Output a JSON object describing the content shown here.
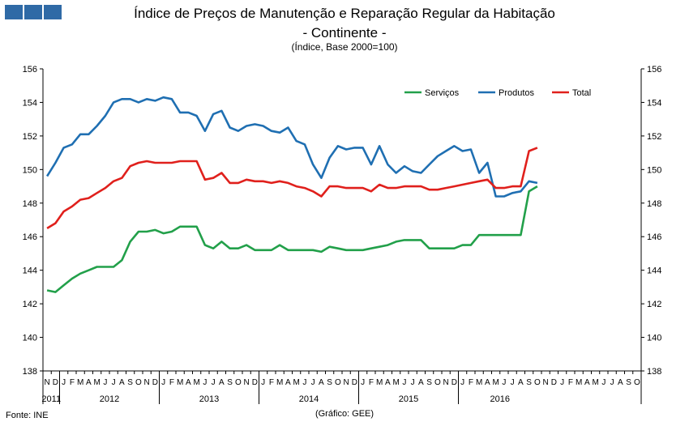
{
  "header": {
    "title": "Índice de Preços de Manutenção e Reparação Regular da Habitação",
    "subtitle": "- Continente -",
    "unit": "(Índice, Base 2000=100)"
  },
  "footer": {
    "source": "Fonte: INE",
    "credit": "(Gráfico: GEE)"
  },
  "logo": {
    "color": "#2f6aa6"
  },
  "chart_data": {
    "type": "line",
    "ylim": [
      138,
      156
    ],
    "yticks": [
      "138",
      "140",
      "142",
      "144",
      "146",
      "148",
      "150",
      "152",
      "154",
      "156"
    ],
    "grid": false,
    "legend_position": "top-right",
    "month_labels": [
      "N",
      "D",
      "J",
      "F",
      "M",
      "A",
      "M",
      "J",
      "J",
      "A",
      "S",
      "O",
      "N",
      "D",
      "J",
      "F",
      "M",
      "A",
      "M",
      "J",
      "J",
      "A",
      "S",
      "O",
      "N",
      "D",
      "J",
      "F",
      "M",
      "A",
      "M",
      "J",
      "J",
      "A",
      "S",
      "O",
      "N",
      "D",
      "J",
      "F",
      "M",
      "A",
      "M",
      "J",
      "J",
      "A",
      "S",
      "O",
      "N",
      "D",
      "J",
      "F",
      "M",
      "A",
      "M",
      "J",
      "J",
      "A",
      "S",
      "O",
      "N",
      "D",
      "J",
      "F",
      "M",
      "A",
      "M",
      "J",
      "J",
      "A",
      "S",
      "O"
    ],
    "year_groups": [
      {
        "label": "2011",
        "months": 2
      },
      {
        "label": "2012",
        "months": 12
      },
      {
        "label": "2013",
        "months": 12
      },
      {
        "label": "2014",
        "months": 12
      },
      {
        "label": "2015",
        "months": 12
      },
      {
        "label": "2016",
        "months": 10
      }
    ],
    "series": [
      {
        "name": "Serviços",
        "color": "#22a04a",
        "values": [
          142.8,
          142.7,
          143.1,
          143.5,
          143.8,
          144.0,
          144.2,
          144.2,
          144.2,
          144.6,
          145.7,
          146.3,
          146.3,
          146.4,
          146.2,
          146.3,
          146.6,
          146.6,
          146.6,
          145.5,
          145.3,
          145.7,
          145.3,
          145.3,
          145.5,
          145.2,
          145.2,
          145.2,
          145.5,
          145.2,
          145.2,
          145.2,
          145.2,
          145.1,
          145.4,
          145.3,
          145.2,
          145.2,
          145.2,
          145.3,
          145.4,
          145.5,
          145.7,
          145.8,
          145.8,
          145.8,
          145.3,
          145.3,
          145.3,
          145.3,
          145.5,
          145.5,
          146.1,
          146.1,
          146.1,
          146.1,
          146.1,
          146.1,
          148.7,
          149.0
        ]
      },
      {
        "name": "Produtos",
        "color": "#1f6fb2",
        "values": [
          149.6,
          150.4,
          151.3,
          151.5,
          152.1,
          152.1,
          152.6,
          153.2,
          154.0,
          154.2,
          154.2,
          154.0,
          154.2,
          154.1,
          154.3,
          154.2,
          153.4,
          153.4,
          153.2,
          152.3,
          153.3,
          153.5,
          152.5,
          152.3,
          152.6,
          152.7,
          152.6,
          152.3,
          152.2,
          152.5,
          151.7,
          151.5,
          150.3,
          149.5,
          150.7,
          151.4,
          151.2,
          151.3,
          151.3,
          150.3,
          151.4,
          150.3,
          149.8,
          150.2,
          149.9,
          149.8,
          150.3,
          150.8,
          151.1,
          151.4,
          151.1,
          151.2,
          149.8,
          150.4,
          148.4,
          148.4,
          148.6,
          148.7,
          149.3,
          149.2
        ]
      },
      {
        "name": "Total",
        "color": "#e0201c",
        "values": [
          146.5,
          146.8,
          147.5,
          147.8,
          148.2,
          148.3,
          148.6,
          148.9,
          149.3,
          149.5,
          150.2,
          150.4,
          150.5,
          150.4,
          150.4,
          150.4,
          150.5,
          150.5,
          150.5,
          149.4,
          149.5,
          149.8,
          149.2,
          149.2,
          149.4,
          149.3,
          149.3,
          149.2,
          149.3,
          149.2,
          149.0,
          148.9,
          148.7,
          148.4,
          149.0,
          149.0,
          148.9,
          148.9,
          148.9,
          148.7,
          149.1,
          148.9,
          148.9,
          149.0,
          149.0,
          149.0,
          148.8,
          148.8,
          148.9,
          149.0,
          149.1,
          149.2,
          149.3,
          149.4,
          148.9,
          148.9,
          149.0,
          149.0,
          151.1,
          151.3
        ]
      }
    ]
  }
}
